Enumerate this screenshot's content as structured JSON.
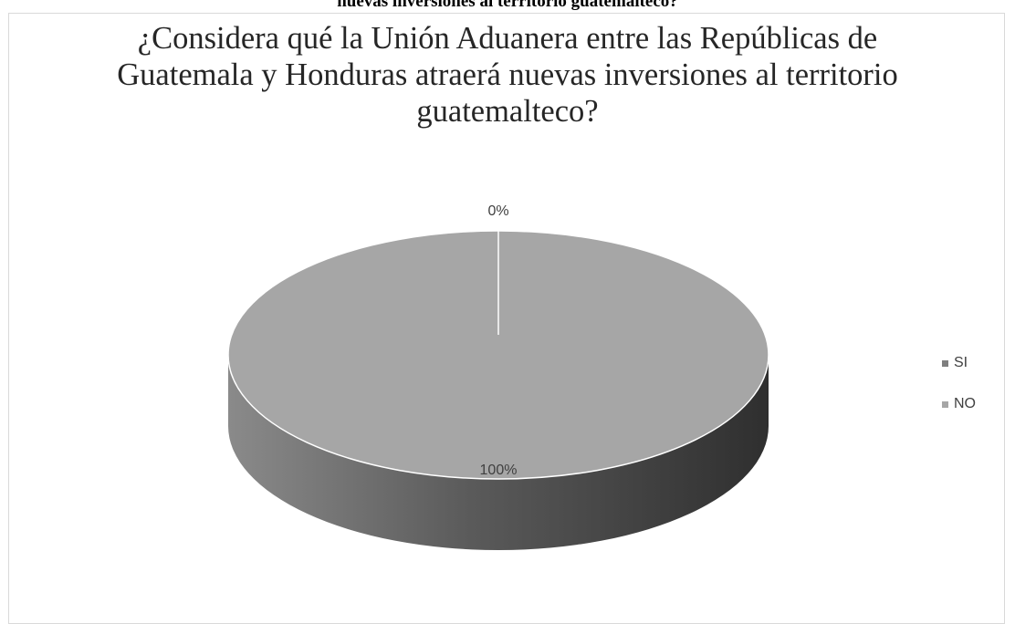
{
  "page": {
    "caption": "nuevas inversiones al territorio guatemalteco?"
  },
  "chart_data": {
    "type": "pie",
    "title": "¿Considera qué la Unión Aduanera entre las Repúblicas de Guatemala y Honduras atraerá nuevas inversiones al territorio guatemalteco?",
    "categories": [
      "SI",
      "NO"
    ],
    "values": [
      0,
      100
    ],
    "data_labels": [
      "0%",
      "100%"
    ],
    "colors": [
      "#7f7f7f",
      "#a6a6a6"
    ],
    "legend_position": "right",
    "style": "3d"
  }
}
